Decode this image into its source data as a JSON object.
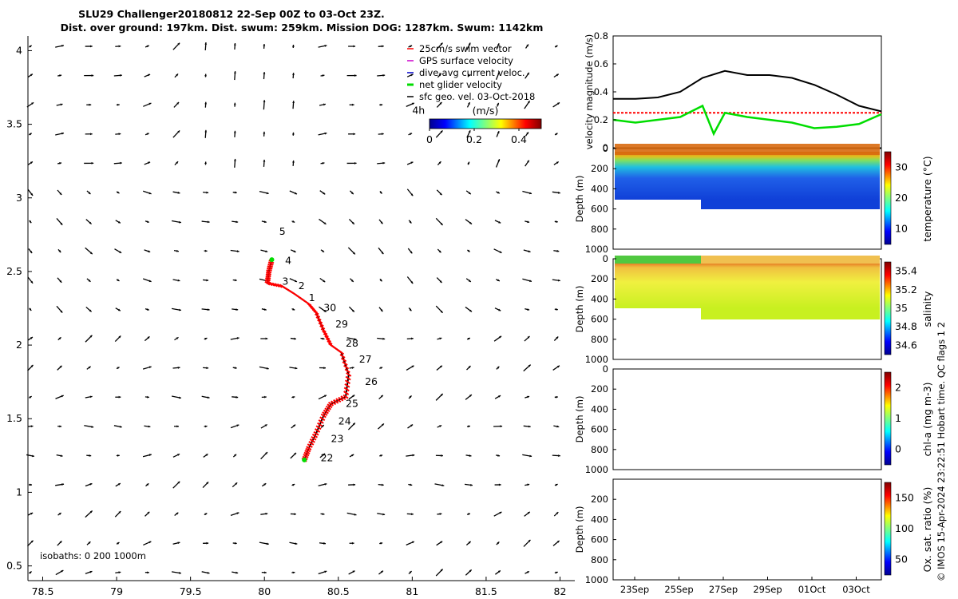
{
  "header": {
    "line1": "SLU29 Challenger20180812 22-Sep 00Z to 03-Oct 23Z.",
    "line2": "Dist. over ground: 197km. Dist. swum: 259km. Mission DOG: 1287km. Swum: 1142km"
  },
  "chart_data": [
    {
      "type": "scatter",
      "name": "map",
      "xlim": [
        78.4,
        82.1
      ],
      "ylim": [
        0.4,
        4.1
      ],
      "xticks": [
        "78.5",
        "79",
        "79.5",
        "80",
        "80.5",
        "81",
        "81.5",
        "82"
      ],
      "yticks": [
        "0.5",
        "1",
        "1.5",
        "2",
        "2.5",
        "3",
        "3.5",
        "4"
      ],
      "track": [
        [
          80.27,
          1.22
        ],
        [
          80.3,
          1.3
        ],
        [
          80.35,
          1.4
        ],
        [
          80.4,
          1.52
        ],
        [
          80.45,
          1.6
        ],
        [
          80.55,
          1.65
        ],
        [
          80.57,
          1.8
        ],
        [
          80.52,
          1.95
        ],
        [
          80.45,
          2.0
        ],
        [
          80.4,
          2.1
        ],
        [
          80.35,
          2.22
        ],
        [
          80.3,
          2.28
        ],
        [
          80.2,
          2.35
        ],
        [
          80.12,
          2.4
        ],
        [
          80.02,
          2.42
        ],
        [
          80.03,
          2.5
        ],
        [
          80.05,
          2.58
        ]
      ],
      "day_labels": [
        {
          "t": "22",
          "x": 80.38,
          "y": 1.21
        },
        {
          "t": "23",
          "x": 80.45,
          "y": 1.34
        },
        {
          "t": "24",
          "x": 80.5,
          "y": 1.46
        },
        {
          "t": "25",
          "x": 80.55,
          "y": 1.58
        },
        {
          "t": "26",
          "x": 80.68,
          "y": 1.73
        },
        {
          "t": "27",
          "x": 80.64,
          "y": 1.88
        },
        {
          "t": "28",
          "x": 80.55,
          "y": 1.99
        },
        {
          "t": "29",
          "x": 80.48,
          "y": 2.12
        },
        {
          "t": "30",
          "x": 80.4,
          "y": 2.23
        },
        {
          "t": "1",
          "x": 80.3,
          "y": 2.3
        },
        {
          "t": "2",
          "x": 80.23,
          "y": 2.38
        },
        {
          "t": "3",
          "x": 80.12,
          "y": 2.41
        },
        {
          "t": "4",
          "x": 80.14,
          "y": 2.55
        },
        {
          "t": "5",
          "x": 80.1,
          "y": 2.75
        },
        {
          "t": "4h",
          "x": 81.0,
          "y": 3.57
        }
      ],
      "legend": [
        {
          "label": "25cm/s swim vector",
          "color": "#ff0000"
        },
        {
          "label": "GPS surface velocity",
          "color": "#cc00cc"
        },
        {
          "label": "dive-avg current veloc.",
          "color": "#0000cc"
        },
        {
          "label": "net glider velocity",
          "color": "#00dd00"
        },
        {
          "label": "sfc geo. vel. 03-Oct-2018",
          "color": "#000000"
        }
      ],
      "colorbar": {
        "title": "(m/s)",
        "ticks": [
          "0",
          "0.2",
          "0.4"
        ],
        "range": [
          0,
          0.5
        ]
      },
      "isobaths_note": "isobaths: 0   200   1000m"
    },
    {
      "type": "line",
      "name": "velocity",
      "ylabel": "velocity magnitude (m/s)",
      "ylim": [
        0,
        0.8
      ],
      "yticks": [
        "0",
        "0.2",
        "0.4",
        "0.6",
        "0.8"
      ],
      "series": [
        {
          "name": "current",
          "color": "#000000",
          "x": [
            0,
            1,
            2,
            3,
            4,
            5,
            6,
            7,
            8,
            9,
            10,
            11,
            12
          ],
          "values": [
            0.35,
            0.35,
            0.36,
            0.4,
            0.5,
            0.55,
            0.52,
            0.52,
            0.5,
            0.45,
            0.38,
            0.3,
            0.26
          ]
        },
        {
          "name": "swim 25cm/s",
          "color": "#ff0000",
          "x": [
            0,
            12
          ],
          "values": [
            0.25,
            0.25
          ]
        },
        {
          "name": "net glider",
          "color": "#00dd00",
          "x": [
            0,
            1,
            2,
            3,
            4,
            4.5,
            5,
            6,
            7,
            8,
            9,
            10,
            11,
            12
          ],
          "values": [
            0.2,
            0.18,
            0.2,
            0.22,
            0.3,
            0.1,
            0.25,
            0.22,
            0.2,
            0.18,
            0.14,
            0.15,
            0.17,
            0.24
          ]
        }
      ]
    },
    {
      "type": "heatmap",
      "name": "temperature",
      "ylabel": "Depth (m)",
      "cblabel": "temperature (°C)",
      "cbticks": [
        "10",
        "20",
        "30"
      ],
      "yticks": [
        "0",
        "200",
        "400",
        "600",
        "800",
        "1000"
      ]
    },
    {
      "type": "heatmap",
      "name": "salinity",
      "ylabel": "Depth (m)",
      "cblabel": "salinity",
      "cbticks": [
        "34.6",
        "34.8",
        "35",
        "35.2",
        "35.4"
      ],
      "yticks": [
        "0",
        "200",
        "400",
        "600",
        "800",
        "1000"
      ]
    },
    {
      "type": "heatmap",
      "name": "chl-a",
      "ylabel": "Depth (m)",
      "cblabel": "chl-a (mg m-3)",
      "cbticks": [
        "0",
        "1",
        "2"
      ],
      "yticks": [
        "0",
        "200",
        "400",
        "600",
        "800",
        "1000"
      ]
    },
    {
      "type": "heatmap",
      "name": "oxygen",
      "ylabel": "Depth (m)",
      "cblabel": "Ox. sat. ratio (%)",
      "cbticks": [
        "50",
        "100",
        "150"
      ],
      "yticks": [
        "200",
        "400",
        "600",
        "800",
        "1000"
      ]
    }
  ],
  "time_axis": {
    "ticks": [
      "23Sep",
      "25Sep",
      "27Sep",
      "29Sep",
      "01Oct",
      "03Oct"
    ]
  },
  "side_note": "© IMOS 15-Apr-2024 23:22:51 Hobart time. QC flags 1  2"
}
